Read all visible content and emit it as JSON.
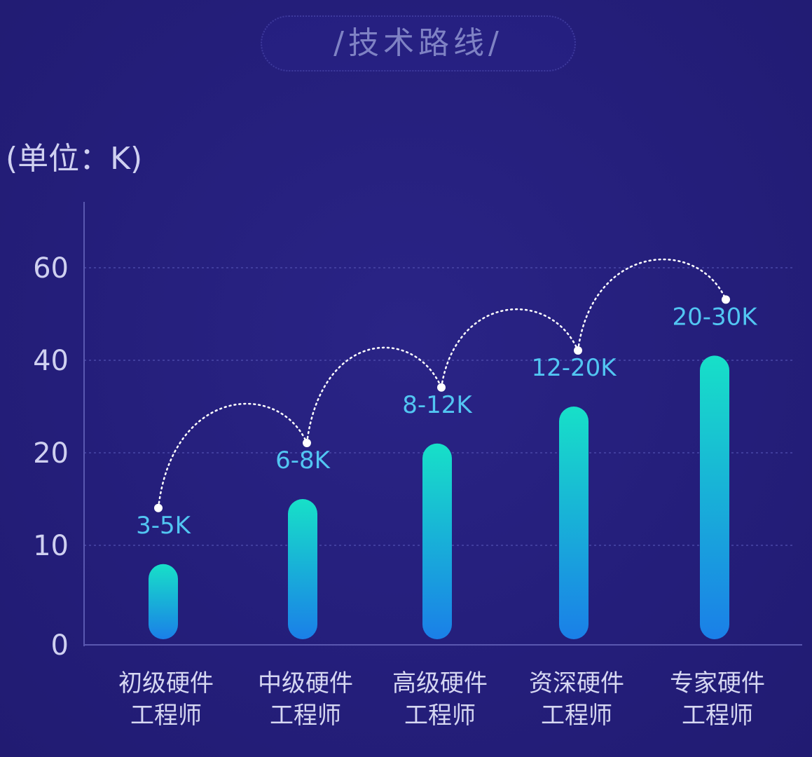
{
  "header": {
    "title": "/技术路线/"
  },
  "unit_label": "(单位：K)",
  "chart_data": {
    "type": "bar",
    "ylim": [
      0,
      70
    ],
    "y_ticks": [
      0,
      10,
      20,
      40,
      60
    ],
    "grid": true,
    "categories": [
      [
        "初级硬件",
        "工程师"
      ],
      [
        "中级硬件",
        "工程师"
      ],
      [
        "高级硬件",
        "工程师"
      ],
      [
        "资深硬件",
        "工程师"
      ],
      [
        "专家硬件",
        "工程师"
      ]
    ],
    "values": [
      8,
      15,
      22,
      30,
      41
    ],
    "data_labels": [
      "3-5K",
      "6-8K",
      "8-12K",
      "12-20K",
      "20-30K"
    ],
    "colors": {
      "bar_top": "#17e0c8",
      "bar_bottom": "#1a7fe8",
      "label": "#52c6f2",
      "axis": "#5a58b0",
      "grid": "#4a48a8",
      "tick": "#cfd0f0",
      "arc": "#ffffff"
    }
  }
}
